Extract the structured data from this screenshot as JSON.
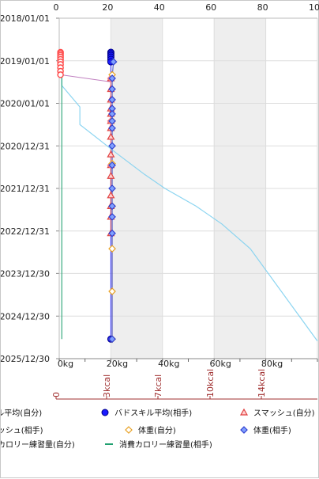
{
  "chart_data": {
    "type": "line",
    "orientation": "horizontal",
    "y_axis": {
      "type": "date",
      "range": [
        "2018/01/01",
        "2025/12/30"
      ],
      "ticks": [
        "2018/01/01",
        "2019/01/01",
        "2020/01/01",
        "2020/12/31",
        "2021/12/31",
        "2022/12/31",
        "2023/12/30",
        "2024/12/30",
        "2025/12/30"
      ]
    },
    "x_top_axis": {
      "range": [
        0,
        100
      ],
      "ticks": [
        "0",
        "20",
        "40",
        "60",
        "80",
        "10"
      ]
    },
    "x_bottom_axis": {
      "range": [
        0,
        100
      ],
      "ticks": [
        "0kg",
        "20kg",
        "40kg",
        "60kg",
        "80kg"
      ]
    },
    "x_cal_axis": {
      "ticks": [
        "0",
        "3kcal",
        "7kcal",
        "10kcal",
        "14kcal"
      ]
    },
    "grid": true,
    "legend_position": "bottom",
    "series": [
      {
        "name": "バドスキル平均(自分)",
        "axis": "top",
        "color": "#ff4d4d",
        "marker": "circle-open",
        "points": [
          {
            "x": 0.5,
            "date": "2018/10/20"
          },
          {
            "x": 0.5,
            "date": "2018/11/01"
          },
          {
            "x": 0.5,
            "date": "2018/11/15"
          },
          {
            "x": 0.5,
            "date": "2018/12/01"
          },
          {
            "x": 0.5,
            "date": "2018/12/20"
          },
          {
            "x": 0.5,
            "date": "2019/01/10"
          },
          {
            "x": 0.5,
            "date": "2019/02/01"
          },
          {
            "x": 0.5,
            "date": "2019/03/01"
          },
          {
            "x": 0.5,
            "date": "2019/04/01"
          },
          {
            "x": 0.5,
            "date": "2019/05/01"
          }
        ]
      },
      {
        "name": "バドスキル平均(相手)",
        "axis": "top",
        "color": "#1a1aff",
        "marker": "circle-filled",
        "points": [
          {
            "x": 20,
            "date": "2018/10/20"
          },
          {
            "x": 20,
            "date": "2018/11/01"
          },
          {
            "x": 20,
            "date": "2018/11/15"
          },
          {
            "x": 20,
            "date": "2018/12/01"
          },
          {
            "x": 20,
            "date": "2018/12/20"
          },
          {
            "x": 20,
            "date": "2019/01/10"
          },
          {
            "x": 20,
            "date": "2025/07/15"
          }
        ]
      },
      {
        "name": "スマッシュ(自分)",
        "axis": "top",
        "color": "#e04040",
        "marker": "triangle-open",
        "points": [
          {
            "x": 20,
            "date": "2019/06/01"
          },
          {
            "x": 20,
            "date": "2019/09/01"
          },
          {
            "x": 20,
            "date": "2019/12/01"
          },
          {
            "x": 20,
            "date": "2020/02/15"
          },
          {
            "x": 20,
            "date": "2020/04/01"
          },
          {
            "x": 20,
            "date": "2020/06/01"
          },
          {
            "x": 20,
            "date": "2020/08/01"
          },
          {
            "x": 20,
            "date": "2020/10/15"
          },
          {
            "x": 20,
            "date": "2021/03/15"
          },
          {
            "x": 20,
            "date": "2021/06/15"
          },
          {
            "x": 20,
            "date": "2021/09/15"
          },
          {
            "x": 20,
            "date": "2022/03/01"
          },
          {
            "x": 20,
            "date": "2022/06/01"
          },
          {
            "x": 20,
            "date": "2022/09/01"
          },
          {
            "x": 20,
            "date": "2023/01/20"
          }
        ]
      },
      {
        "name": "スマッシュ(相手)",
        "axis": "top",
        "color": "#ff8080",
        "marker": "diamond-open",
        "points": [
          {
            "x": 20,
            "date": "2019/06/01"
          },
          {
            "x": 20,
            "date": "2020/06/01"
          },
          {
            "x": 20,
            "date": "2021/06/15"
          }
        ]
      },
      {
        "name": "体重(自分)",
        "axis": "bottom",
        "color": "#e8a020",
        "marker": "diamond-open",
        "points": [
          {
            "x": 20.5,
            "date": "2019/05/01"
          },
          {
            "x": 20.5,
            "date": "2020/06/01"
          },
          {
            "x": 20.5,
            "date": "2021/06/01"
          },
          {
            "x": 20.5,
            "date": "2022/06/01"
          },
          {
            "x": 20.5,
            "date": "2023/06/01"
          },
          {
            "x": 20.5,
            "date": "2024/06/01"
          },
          {
            "x": 20.5,
            "date": "2025/07/15"
          }
        ]
      },
      {
        "name": "体重(相手)",
        "axis": "bottom",
        "color": "#3040d0",
        "marker": "diamond-filled",
        "points": [
          {
            "x": 21,
            "date": "2019/01/10"
          },
          {
            "x": 20.5,
            "date": "2019/06/01"
          },
          {
            "x": 20.5,
            "date": "2019/09/01"
          },
          {
            "x": 20.5,
            "date": "2019/12/01"
          },
          {
            "x": 20.5,
            "date": "2020/02/15"
          },
          {
            "x": 20.5,
            "date": "2020/04/01"
          },
          {
            "x": 20.5,
            "date": "2020/06/01"
          },
          {
            "x": 20.5,
            "date": "2020/08/01"
          },
          {
            "x": 20.5,
            "date": "2020/12/31"
          },
          {
            "x": 20.5,
            "date": "2021/06/15"
          },
          {
            "x": 20.5,
            "date": "2021/12/31"
          },
          {
            "x": 20.5,
            "date": "2022/06/01"
          },
          {
            "x": 20.5,
            "date": "2022/09/01"
          },
          {
            "x": 20.5,
            "date": "2023/01/20"
          },
          {
            "x": 20.5,
            "date": "2025/07/15"
          }
        ]
      },
      {
        "name": "消費カロリー練習量(自分)",
        "axis": "bottom",
        "color": "#80d0f0",
        "marker": "none",
        "points": [
          {
            "x": 1,
            "date": "2019/05/01"
          },
          {
            "x": 1,
            "date": "2019/08/01"
          },
          {
            "x": 8,
            "date": "2020/02/01"
          },
          {
            "x": 8,
            "date": "2020/07/01"
          },
          {
            "x": 22,
            "date": "2021/03/01"
          },
          {
            "x": 33,
            "date": "2021/09/01"
          },
          {
            "x": 41,
            "date": "2022/01/01"
          },
          {
            "x": 53,
            "date": "2022/06/01"
          },
          {
            "x": 63,
            "date": "2022/11/01"
          },
          {
            "x": 74,
            "date": "2023/06/01"
          },
          {
            "x": 100,
            "date": "2025/08/01"
          }
        ]
      },
      {
        "name": "消費カロリー練習量(相手)",
        "axis": "bottom",
        "color": "#20a070",
        "marker": "none",
        "points": [
          {
            "x": 1,
            "date": "2019/05/01"
          },
          {
            "x": 1,
            "date": "2025/07/15"
          }
        ]
      }
    ],
    "connector_line": {
      "color": "#c080c0",
      "from": {
        "x": 0.5,
        "date": "2019/05/01"
      },
      "to": {
        "x": 20,
        "date": "2019/07/01"
      }
    }
  },
  "legend": {
    "items": [
      {
        "label": "バドスキル平均(自分)",
        "series": 0
      },
      {
        "label": "バドスキル平均(相手)",
        "series": 1
      },
      {
        "label": "スマッシュ(自分)",
        "series": 2
      },
      {
        "label": "スマッシュ(相手)",
        "series": 3
      },
      {
        "label": "体重(自分)",
        "series": 4
      },
      {
        "label": "体重(相手)",
        "series": 5
      },
      {
        "label": "消費カロリー練習量(自分)",
        "series": 6
      },
      {
        "label": "消費カロリー練習量(相手)",
        "series": 7
      }
    ]
  }
}
